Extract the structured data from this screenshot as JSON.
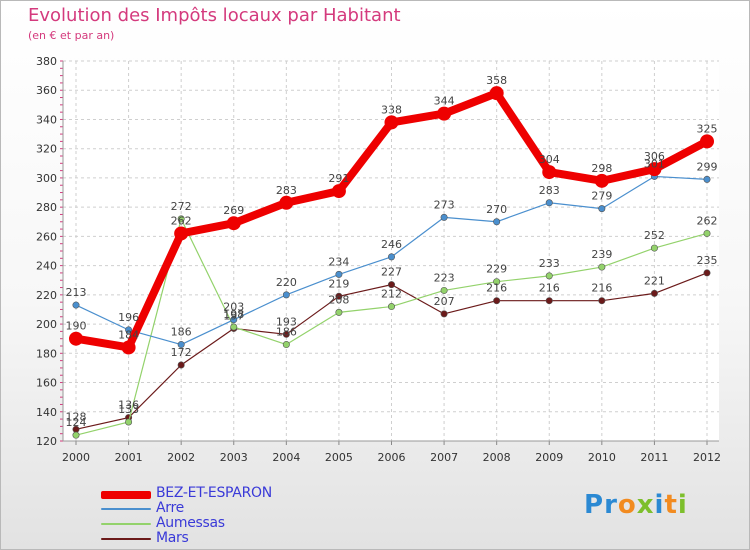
{
  "header": {
    "title": "Evolution des Impôts locaux par Habitant",
    "subtitle": "(en € et par an)"
  },
  "logo": {
    "letters": [
      "P",
      "r",
      "o",
      "x",
      "i",
      "t",
      "i"
    ],
    "colors": [
      "#2b89d3",
      "#2b89d3",
      "#f28b20",
      "#7dbf2c",
      "#2b89d3",
      "#f28b20",
      "#7dbf2c"
    ]
  },
  "chart_data": {
    "type": "line",
    "title": "Evolution des Impôts locaux par Habitant",
    "subtitle": "(en € et par an)",
    "xlabel": "",
    "ylabel": "",
    "categories": [
      "2000",
      "2001",
      "2002",
      "2003",
      "2004",
      "2005",
      "2006",
      "2007",
      "2008",
      "2009",
      "2010",
      "2011",
      "2012"
    ],
    "ylim": [
      120,
      380
    ],
    "yticks": [
      120,
      140,
      160,
      180,
      200,
      220,
      240,
      260,
      280,
      300,
      320,
      340,
      360,
      380
    ],
    "grid": true,
    "legend_position": "bottom-left",
    "series": [
      {
        "name": "BEZ-ET-ESPARON",
        "color": "#ee0000",
        "values": [
          190,
          184,
          262,
          269,
          283,
          291,
          338,
          344,
          358,
          304,
          298,
          306,
          325
        ],
        "labels": [
          "190",
          "184",
          "262",
          "269",
          "283",
          "291",
          "338",
          "344",
          "358",
          "304",
          "298",
          "306",
          "325"
        ]
      },
      {
        "name": "Arre",
        "color": "#4a8fce",
        "values": [
          213,
          196,
          186,
          203,
          220,
          234,
          246,
          273,
          270,
          283,
          279,
          301,
          299
        ],
        "labels": [
          "213",
          "196",
          "186",
          "203",
          "220",
          "234",
          "246",
          "273",
          "270",
          "283",
          "279",
          "301",
          "299"
        ]
      },
      {
        "name": "Aumessas",
        "color": "#93d26b",
        "values": [
          124,
          133,
          272,
          198,
          186,
          208,
          212,
          223,
          229,
          233,
          239,
          252,
          262
        ],
        "labels": [
          "124",
          "133",
          "272",
          "198",
          "186",
          "208",
          "212",
          "223",
          "229",
          "233",
          "239",
          "252",
          "262"
        ]
      },
      {
        "name": "Mars",
        "color": "#6b1a1a",
        "values": [
          128,
          136,
          172,
          197,
          193,
          219,
          227,
          207,
          216,
          216,
          216,
          221,
          235
        ],
        "labels": [
          "128",
          "136",
          "172",
          "197",
          "193",
          "219",
          "227",
          "207",
          "216",
          "216",
          "216",
          "221",
          "235"
        ]
      }
    ]
  }
}
